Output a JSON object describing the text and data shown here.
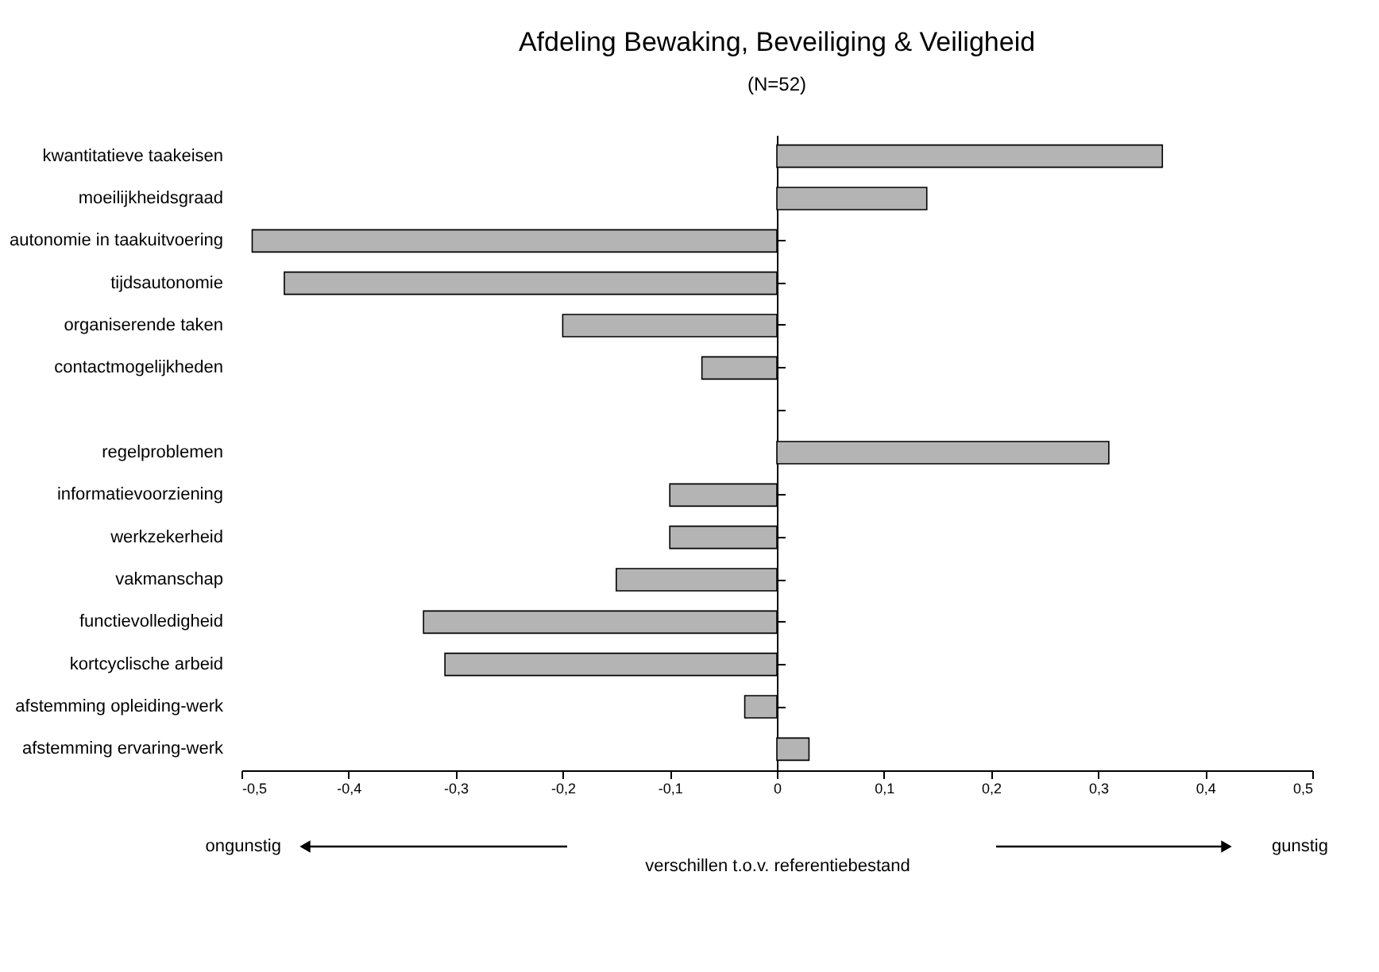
{
  "chart_data": {
    "type": "bar",
    "orientation": "horizontal",
    "title": "Afdeling Bewaking, Beveiliging & Veiligheid",
    "subtitle": "(N=52)",
    "categories": [
      "kwantitatieve taakeisen",
      "moeilijkheidsgraad",
      "autonomie in taakuitvoering",
      "tijdsautonomie",
      "organiserende taken",
      "contactmogelijkheden",
      null,
      "regelproblemen",
      "informatievoorziening",
      "werkzekerheid",
      "vakmanschap",
      "functievolledigheid",
      "kortcyclische arbeid",
      "afstemming opleiding-werk",
      "afstemming ervaring-werk"
    ],
    "values": [
      0.36,
      0.14,
      -0.49,
      -0.46,
      -0.2,
      -0.07,
      null,
      0.31,
      -0.1,
      -0.1,
      -0.15,
      -0.33,
      -0.31,
      -0.03,
      0.03
    ],
    "color": "#b4b4b4",
    "xlim": [
      -0.5,
      0.5
    ],
    "xticks": [
      {
        "value": -0.5,
        "label": "-0,5"
      },
      {
        "value": -0.4,
        "label": "-0,4"
      },
      {
        "value": -0.3,
        "label": "-0,3"
      },
      {
        "value": -0.2,
        "label": "-0,2"
      },
      {
        "value": -0.1,
        "label": "-0,1"
      },
      0,
      {
        "value": 0.1,
        "label": "0,1"
      },
      {
        "value": 0.2,
        "label": "0,2"
      },
      {
        "value": 0.3,
        "label": "0,3"
      },
      {
        "value": 0.4,
        "label": "0,4"
      },
      {
        "value": 0.5,
        "label": "0,5"
      }
    ],
    "xlabel": "verschillen t.o.v. referentiebestand",
    "annotations": [
      "ongunstig",
      "gunstig"
    ]
  }
}
